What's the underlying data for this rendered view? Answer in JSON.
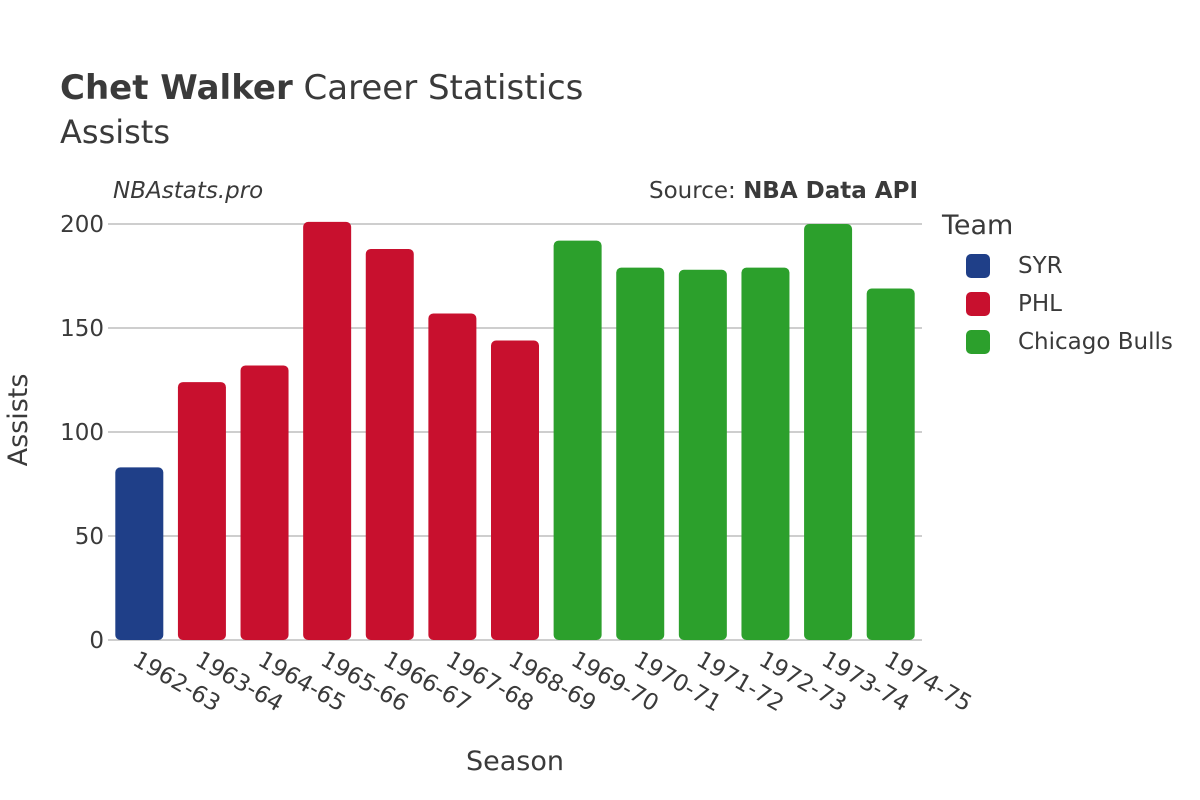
{
  "header": {
    "title_bold": "Chet Walker",
    "title_rest": "Career Statistics",
    "subtitle": "Assists",
    "watermark": "NBAstats.pro",
    "source_prefix": "Source: ",
    "source_name": "NBA Data API"
  },
  "legend": {
    "title": "Team",
    "items": [
      {
        "label": "SYR",
        "color": "#1f3f88"
      },
      {
        "label": "PHL",
        "color": "#c8102e"
      },
      {
        "label": "Chicago Bulls",
        "color": "#2ca02c"
      }
    ]
  },
  "chart_data": {
    "type": "bar",
    "title": "Chet Walker Career Statistics",
    "subtitle": "Assists",
    "xlabel": "Season",
    "ylabel": "Assists",
    "ylim": [
      0,
      200
    ],
    "yticks": [
      0,
      50,
      100,
      150,
      200
    ],
    "grid": true,
    "legend_placement": "right",
    "categories": [
      "1962-63",
      "1963-64",
      "1964-65",
      "1965-66",
      "1966-67",
      "1967-68",
      "1968-69",
      "1969-70",
      "1970-71",
      "1971-72",
      "1972-73",
      "1973-74",
      "1974-75"
    ],
    "values": [
      83,
      124,
      132,
      201,
      188,
      157,
      144,
      192,
      179,
      178,
      179,
      200,
      169
    ],
    "teams": [
      "SYR",
      "PHL",
      "PHL",
      "PHL",
      "PHL",
      "PHL",
      "PHL",
      "Chicago Bulls",
      "Chicago Bulls",
      "Chicago Bulls",
      "Chicago Bulls",
      "Chicago Bulls",
      "Chicago Bulls"
    ]
  }
}
